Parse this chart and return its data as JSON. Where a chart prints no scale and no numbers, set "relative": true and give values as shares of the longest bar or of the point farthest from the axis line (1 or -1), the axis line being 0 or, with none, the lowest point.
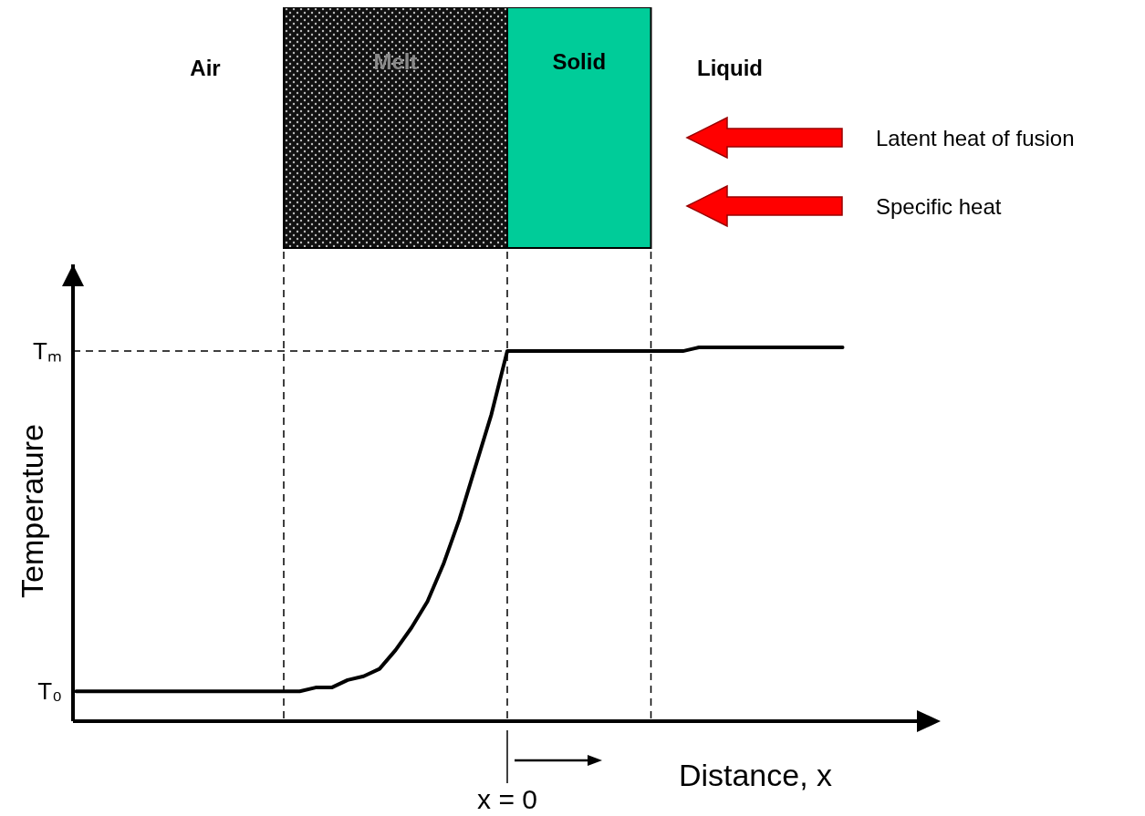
{
  "chart_data": {
    "type": "line",
    "xlabel": "Distance, x",
    "ylabel": "Temperature",
    "categories": [
      null,
      null,
      null,
      null,
      null,
      null,
      null,
      null,
      null,
      null,
      null,
      null,
      null,
      null,
      null,
      null,
      null,
      null,
      null,
      null,
      null,
      null,
      null,
      null,
      null,
      null,
      null,
      null,
      null,
      null,
      null,
      null,
      null,
      null,
      null,
      null,
      null,
      null,
      null,
      null,
      null,
      null,
      null,
      null,
      null,
      null,
      null,
      null,
      null,
      null,
      null,
      null,
      null
    ],
    "relative": true,
    "series": [
      {
        "color": "#000000",
        "values": [
          0.08,
          0.08,
          0.08,
          0.08,
          0.08,
          0.08,
          0.08,
          0.08,
          0.08,
          0.08,
          0.08,
          0.08,
          0.08,
          0.08,
          0.08,
          0.09,
          0.09,
          0.11,
          0.12,
          0.14,
          0.19,
          0.25,
          0.32,
          0.42,
          0.54,
          0.68,
          0.82,
          0.99,
          0.99,
          0.99,
          0.99,
          0.99,
          0.99,
          0.99,
          0.99,
          0.99,
          0.99,
          0.99,
          0.99,
          1,
          1,
          1,
          1,
          1,
          1,
          1,
          1,
          1,
          1,
          null,
          null,
          null,
          null
        ]
      }
    ],
    "ref_lines": [
      {
        "axis": "y",
        "value": 0.99,
        "line_style": "dashed"
      }
    ],
    "annotations": [
      "Air",
      "Melt",
      "Solid",
      "Liquid",
      "Latent heat of fusion",
      "Specific heat",
      "x = 0",
      "T₀",
      "Tₘ"
    ],
    "grid": "x",
    "line_style": "solid"
  }
}
